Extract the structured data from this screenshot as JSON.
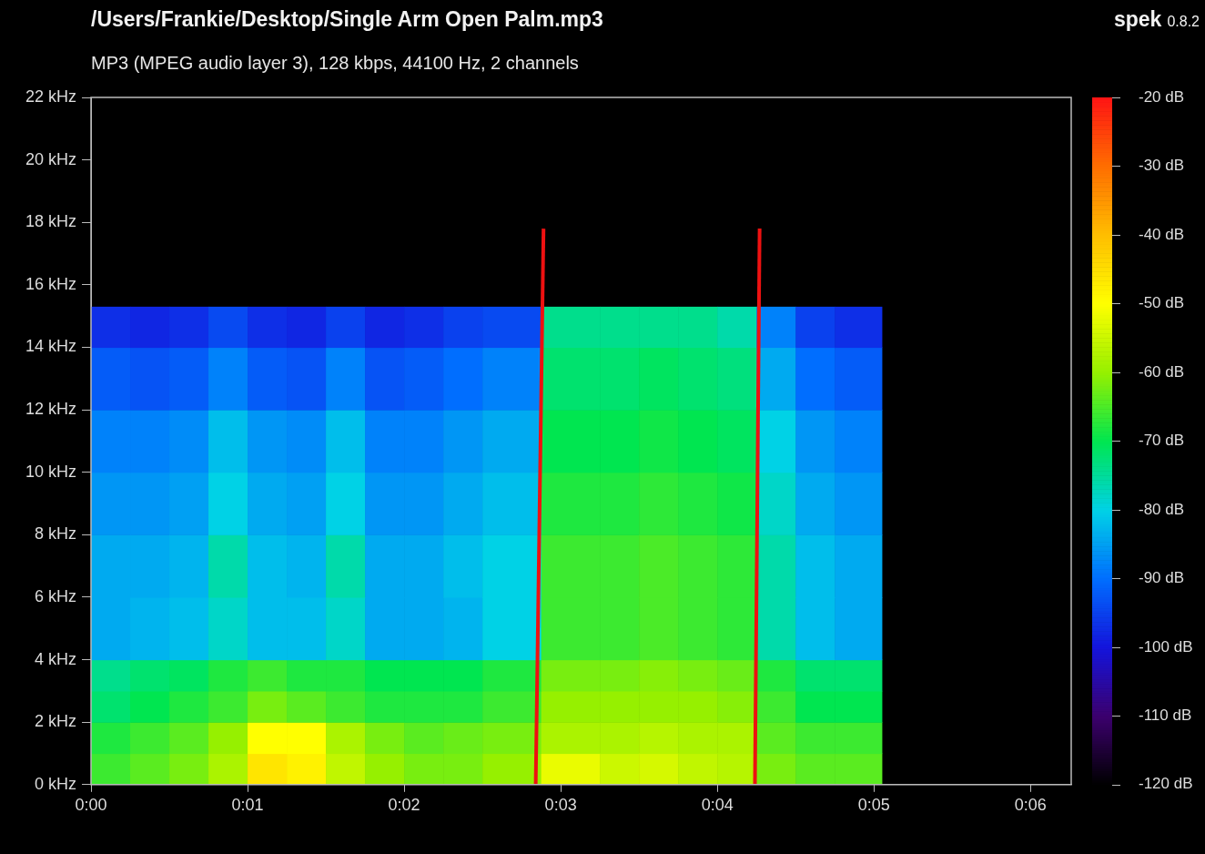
{
  "chart_data": {
    "type": "heatmap",
    "title": "/Users/Frankie/Desktop/Single Arm Open Palm.mp3",
    "subtitle": "MP3 (MPEG audio layer 3), 128 kbps, 44100 Hz, 2 channels",
    "annotations": [
      "spek",
      "0.8.2"
    ],
    "xlim": [
      0,
      6.26
    ],
    "xticks": [
      {
        "value": 0,
        "label": "0:00"
      },
      {
        "value": 1,
        "label": "0:01"
      },
      {
        "value": 2,
        "label": "0:02"
      },
      {
        "value": 3,
        "label": "0:03"
      },
      {
        "value": 4,
        "label": "0:04"
      },
      {
        "value": 5,
        "label": "0:05"
      },
      {
        "value": 6,
        "label": "0:06"
      }
    ],
    "ylim": [
      0,
      22
    ],
    "yticks": [
      {
        "value": 0,
        "label": "0 kHz"
      },
      {
        "value": 2,
        "label": "2 kHz"
      },
      {
        "value": 4,
        "label": "4 kHz"
      },
      {
        "value": 6,
        "label": "6 kHz"
      },
      {
        "value": 8,
        "label": "8 kHz"
      },
      {
        "value": 10,
        "label": "10 kHz"
      },
      {
        "value": 12,
        "label": "12 kHz"
      },
      {
        "value": 14,
        "label": "14 kHz"
      },
      {
        "value": 16,
        "label": "16 kHz"
      },
      {
        "value": 18,
        "label": "18 kHz"
      },
      {
        "value": 20,
        "label": "20 kHz"
      },
      {
        "value": 22,
        "label": "22 kHz"
      }
    ],
    "grid": false,
    "heatmap": {
      "x_edges": [
        0,
        0.25,
        0.5,
        0.75,
        1,
        1.25,
        1.5,
        1.75,
        2,
        2.25,
        2.5,
        2.875,
        3.25,
        3.5,
        3.75,
        4,
        4.25,
        4.5,
        4.75,
        5.05
      ],
      "y_edges": [
        0,
        1,
        2,
        3,
        4,
        6,
        8,
        10,
        12,
        14,
        15.3
      ],
      "values": [
        [
          -66,
          -64,
          -62,
          -58,
          -46,
          -48,
          -56,
          -60,
          -62,
          -62,
          -60,
          -52,
          -55,
          -54,
          -56,
          -57,
          -62,
          -64,
          -64
        ],
        [
          -68,
          -66,
          -64,
          -60,
          -50,
          -50,
          -58,
          -62,
          -64,
          -63,
          -62,
          -58,
          -58,
          -57,
          -58,
          -58,
          -64,
          -66,
          -66
        ],
        [
          -72,
          -70,
          -68,
          -66,
          -62,
          -64,
          -66,
          -68,
          -68,
          -68,
          -66,
          -60,
          -60,
          -60,
          -60,
          -61,
          -66,
          -70,
          -70
        ],
        [
          -74,
          -72,
          -71,
          -68,
          -66,
          -68,
          -68,
          -70,
          -70,
          -70,
          -68,
          -62,
          -62,
          -61,
          -62,
          -63,
          -68,
          -72,
          -72
        ],
        [
          -84,
          -83,
          -82,
          -78,
          -82,
          -82,
          -78,
          -84,
          -84,
          -83,
          -80,
          -66,
          -66,
          -65,
          -66,
          -67,
          -76,
          -82,
          -84
        ],
        [
          -84,
          -84,
          -83,
          -76,
          -82,
          -83,
          -76,
          -84,
          -84,
          -82,
          -80,
          -66,
          -66,
          -65,
          -66,
          -67,
          -76,
          -82,
          -84
        ],
        [
          -86,
          -86,
          -85,
          -80,
          -84,
          -85,
          -80,
          -86,
          -86,
          -84,
          -82,
          -68,
          -68,
          -67,
          -68,
          -69,
          -78,
          -84,
          -86
        ],
        [
          -88,
          -88,
          -87,
          -82,
          -86,
          -87,
          -82,
          -88,
          -88,
          -86,
          -84,
          -70,
          -70,
          -69,
          -70,
          -71,
          -80,
          -86,
          -88
        ],
        [
          -92,
          -93,
          -92,
          -88,
          -92,
          -93,
          -88,
          -93,
          -92,
          -90,
          -88,
          -72,
          -72,
          -71,
          -72,
          -73,
          -84,
          -90,
          -92
        ],
        [
          -97,
          -98,
          -97,
          -94,
          -97,
          -98,
          -95,
          -98,
          -97,
          -95,
          -94,
          -74,
          -74,
          -74,
          -74,
          -76,
          -88,
          -95,
          -97
        ]
      ]
    },
    "colorbar": {
      "range": [
        -120,
        -20
      ],
      "ticks": [
        {
          "value": -20,
          "label": "-20 dB"
        },
        {
          "value": -30,
          "label": "-30 dB"
        },
        {
          "value": -40,
          "label": "-40 dB"
        },
        {
          "value": -50,
          "label": "-50 dB"
        },
        {
          "value": -60,
          "label": "-60 dB"
        },
        {
          "value": -70,
          "label": "-70 dB"
        },
        {
          "value": -80,
          "label": "-80 dB"
        },
        {
          "value": -90,
          "label": "-90 dB"
        },
        {
          "value": -100,
          "label": "-100 dB"
        },
        {
          "value": -110,
          "label": "-110 dB"
        },
        {
          "value": -120,
          "label": "-120 dB"
        }
      ]
    },
    "series": [
      {
        "type": "line",
        "color": "#ee1111",
        "x": [
          2.84,
          2.89
        ],
        "y": [
          0,
          17.8
        ]
      },
      {
        "type": "line",
        "color": "#ee1111",
        "x": [
          4.24,
          4.27
        ],
        "y": [
          0,
          17.8
        ]
      }
    ]
  }
}
